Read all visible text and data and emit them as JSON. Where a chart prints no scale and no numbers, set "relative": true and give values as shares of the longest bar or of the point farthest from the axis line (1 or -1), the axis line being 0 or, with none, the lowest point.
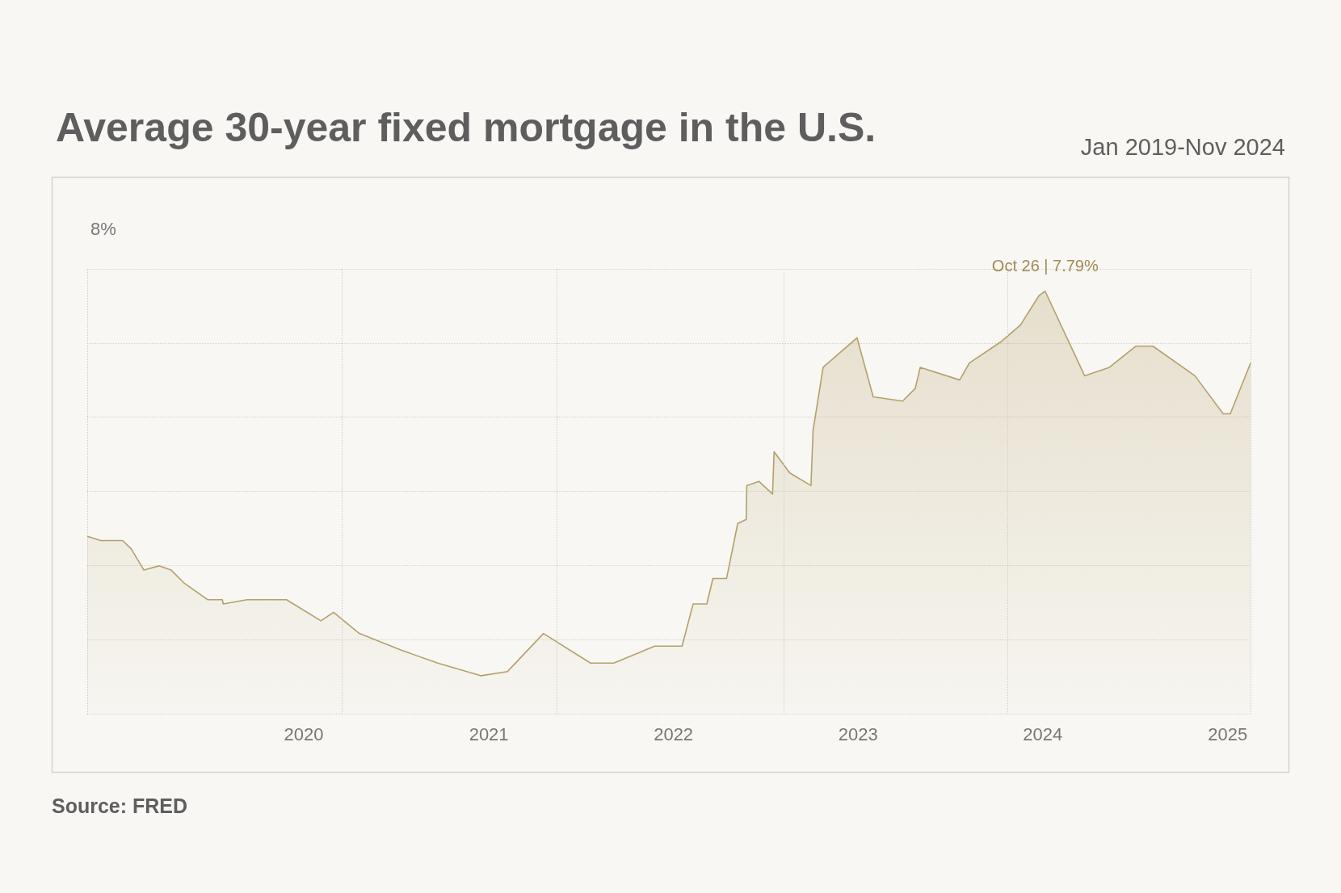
{
  "chart_data": {
    "type": "area",
    "title": "Average 30-year fixed mortgage in the U.S.",
    "subtitle": "Jan 2019-Nov 2024",
    "relative": true,
    "annotations": [
      "8%",
      {
        "text": "Oct 26 | 7.79%",
        "x": "2024-01-06",
        "y": 1
      },
      "Source: FRED"
    ],
    "x": [
      "2018-10-30",
      "2018-11-26",
      "2019-01-08",
      "2019-01-25",
      "2019-02-19",
      "2019-03-21",
      "2019-04-14",
      "2019-05-09",
      "2019-06-25",
      "2019-07-24",
      "2019-07-26",
      "2019-09-11",
      "2019-11-28",
      "2020-02-04",
      "2020-02-29",
      "2020-04-20",
      "2020-07-13",
      "2020-09-22",
      "2020-12-17",
      "2021-02-07",
      "2021-04-19",
      "2021-07-21",
      "2021-09-05",
      "2021-11-25",
      "2022-01-18",
      "2022-02-09",
      "2022-03-08",
      "2022-03-20",
      "2022-04-16",
      "2022-05-08",
      "2022-05-25",
      "2022-05-26",
      "2022-06-19",
      "2022-07-16",
      "2022-07-19",
      "2022-08-19",
      "2022-09-30",
      "2022-10-04",
      "2022-10-24",
      "2022-12-30",
      "2023-01-31",
      "2023-03-30",
      "2023-04-24",
      "2023-05-04",
      "2023-07-21",
      "2023-08-09",
      "2023-10-10",
      "2023-11-18",
      "2023-12-25",
      "2024-01-06",
      "2024-03-24",
      "2024-05-12",
      "2024-07-03",
      "2024-08-06",
      "2024-10-28",
      "2024-12-23",
      "2025-01-06",
      "2025-02-15"
    ],
    "series": [
      {
        "color": "#b5a06a",
        "values": [
          0.42,
          0.41,
          0.41,
          0.39,
          0.34,
          0.35,
          0.34,
          0.31,
          0.27,
          0.27,
          0.26,
          0.27,
          0.27,
          0.22,
          0.24,
          0.19,
          0.15,
          0.12,
          0.09,
          0.1,
          0.19,
          0.12,
          0.12,
          0.16,
          0.16,
          0.26,
          0.26,
          0.32,
          0.32,
          0.45,
          0.46,
          0.54,
          0.55,
          0.52,
          0.62,
          0.57,
          0.54,
          0.67,
          0.82,
          0.89,
          0.75,
          0.74,
          0.77,
          0.82,
          0.79,
          0.83,
          0.88,
          0.92,
          0.99,
          1,
          0.8,
          0.82,
          0.87,
          0.87,
          0.8,
          0.71,
          0.71,
          0.83
        ]
      }
    ],
    "xlim": [
      "2018-10-30",
      "2025-02-15"
    ],
    "xticks": [
      {
        "value": "2018-10-30",
        "label": null
      },
      "2020",
      {
        "value": "2020-03-17",
        "label": null
      },
      "2021",
      {
        "value": "2021-05-15",
        "label": null
      },
      "2022",
      {
        "value": "2022-08-07",
        "label": null
      },
      "2023",
      {
        "value": "2023-10-23",
        "label": null
      },
      "2024",
      "2025",
      {
        "value": "2025-02-15",
        "label": null
      }
    ],
    "grid": true,
    "marker": "none",
    "line_style": "solid"
  }
}
